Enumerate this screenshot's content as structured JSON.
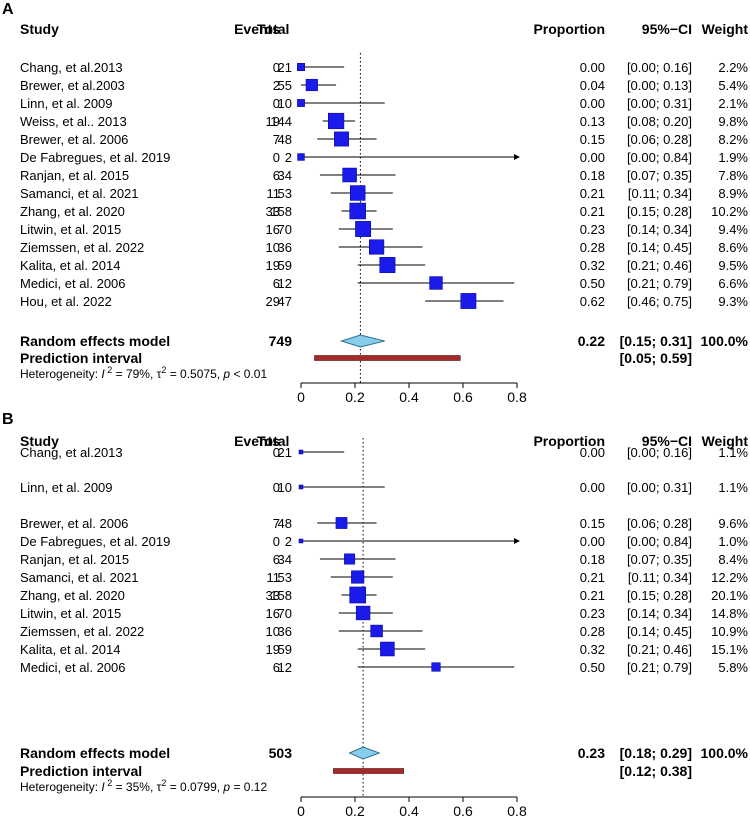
{
  "chart_data": [
    {
      "type": "forest",
      "panel_label": "A",
      "headers": {
        "study": "Study",
        "events": "Events",
        "total": "Total",
        "proportion": "Proportion",
        "ci": "95%−CI",
        "weight": "Weight"
      },
      "xlim": [
        0,
        0.8
      ],
      "ticks": [
        "0",
        "0.2",
        "0.4",
        "0.6",
        "0.8"
      ],
      "ref_line": 0.22,
      "studies": [
        {
          "name": "Chang, et al.2013",
          "events": "0",
          "total": "21",
          "prop": "0.00",
          "ci": "[0.00; 0.16]",
          "weight": "2.2%",
          "est": 0.0,
          "lo": 0.0,
          "hi": 0.16,
          "w": 2.2
        },
        {
          "name": "Brewer, et al.2003",
          "events": "2",
          "total": "55",
          "prop": "0.04",
          "ci": "[0.00; 0.13]",
          "weight": "5.4%",
          "est": 0.04,
          "lo": 0.0,
          "hi": 0.13,
          "w": 5.4
        },
        {
          "name": "Linn, et al. 2009",
          "events": "0",
          "total": "10",
          "prop": "0.00",
          "ci": "[0.00; 0.31]",
          "weight": "2.1%",
          "est": 0.0,
          "lo": 0.0,
          "hi": 0.31,
          "w": 2.1
        },
        {
          "name": "Weiss, et al.. 2013",
          "events": "19",
          "total": "144",
          "prop": "0.13",
          "ci": "[0.08; 0.20]",
          "weight": "9.8%",
          "est": 0.13,
          "lo": 0.08,
          "hi": 0.2,
          "w": 9.8
        },
        {
          "name": "Brewer, et al. 2006",
          "events": "7",
          "total": "48",
          "prop": "0.15",
          "ci": "[0.06; 0.28]",
          "weight": "8.2%",
          "est": 0.15,
          "lo": 0.06,
          "hi": 0.28,
          "w": 8.2
        },
        {
          "name": "De Fabregues, et al. 2019",
          "events": "0",
          "total": "2",
          "prop": "0.00",
          "ci": "[0.00; 0.84]",
          "weight": "1.9%",
          "est": 0.0,
          "lo": 0.0,
          "hi": 0.84,
          "w": 1.9
        },
        {
          "name": "Ranjan, et al. 2015",
          "events": "6",
          "total": "34",
          "prop": "0.18",
          "ci": "[0.07; 0.35]",
          "weight": "7.8%",
          "est": 0.18,
          "lo": 0.07,
          "hi": 0.35,
          "w": 7.8
        },
        {
          "name": "Samanci, et al. 2021",
          "events": "11",
          "total": "53",
          "prop": "0.21",
          "ci": "[0.11; 0.34]",
          "weight": "8.9%",
          "est": 0.21,
          "lo": 0.11,
          "hi": 0.34,
          "w": 8.9
        },
        {
          "name": "Zhang, et al. 2020",
          "events": "33",
          "total": "158",
          "prop": "0.21",
          "ci": "[0.15; 0.28]",
          "weight": "10.2%",
          "est": 0.21,
          "lo": 0.15,
          "hi": 0.28,
          "w": 10.2
        },
        {
          "name": "Litwin, et al. 2015",
          "events": "16",
          "total": "70",
          "prop": "0.23",
          "ci": "[0.14; 0.34]",
          "weight": "9.4%",
          "est": 0.23,
          "lo": 0.14,
          "hi": 0.34,
          "w": 9.4
        },
        {
          "name": "Ziemssen, et al. 2022",
          "events": "10",
          "total": "36",
          "prop": "0.28",
          "ci": "[0.14; 0.45]",
          "weight": "8.6%",
          "est": 0.28,
          "lo": 0.14,
          "hi": 0.45,
          "w": 8.6
        },
        {
          "name": "Kalita, et al. 2014",
          "events": "19",
          "total": "59",
          "prop": "0.32",
          "ci": "[0.21; 0.46]",
          "weight": "9.5%",
          "est": 0.32,
          "lo": 0.21,
          "hi": 0.46,
          "w": 9.5
        },
        {
          "name": "Medici, et al. 2006",
          "events": "6",
          "total": "12",
          "prop": "0.50",
          "ci": "[0.21; 0.79]",
          "weight": "6.6%",
          "est": 0.5,
          "lo": 0.21,
          "hi": 0.79,
          "w": 6.6
        },
        {
          "name": "Hou, et al. 2022",
          "events": "29",
          "total": "47",
          "prop": "0.62",
          "ci": "[0.46; 0.75]",
          "weight": "9.3%",
          "est": 0.62,
          "lo": 0.46,
          "hi": 0.75,
          "w": 9.3
        }
      ],
      "pooled": {
        "label": "Random effects model",
        "total": "749",
        "prop": "0.22",
        "ci": "[0.15; 0.31]",
        "weight": "100.0%",
        "est": 0.22,
        "lo": 0.15,
        "hi": 0.31
      },
      "prediction": {
        "label": "Prediction interval",
        "ci": "[0.05; 0.59]",
        "lo": 0.05,
        "hi": 0.59
      },
      "heterogeneity": {
        "prefix": "Heterogeneity: ",
        "I2": "79%",
        "tau2": "0.5075",
        "p": "< 0.01"
      }
    },
    {
      "type": "forest",
      "panel_label": "B",
      "headers": {
        "study": "Study",
        "events": "Events",
        "total": "Total",
        "proportion": "Proportion",
        "ci": "95%−CI",
        "weight": "Weight"
      },
      "xlim": [
        0,
        0.8
      ],
      "ticks": [
        "0",
        "0.2",
        "0.4",
        "0.6",
        "0.8"
      ],
      "ref_line": 0.23,
      "studies": [
        {
          "name": "Chang, et al.2013",
          "events": "0",
          "total": "21",
          "prop": "0.00",
          "ci": "[0.00; 0.16]",
          "weight": "1.1%",
          "est": 0.0,
          "lo": 0.0,
          "hi": 0.16,
          "w": 1.1
        },
        {
          "name": "Linn, et al. 2009",
          "events": "0",
          "total": "10",
          "prop": "0.00",
          "ci": "[0.00; 0.31]",
          "weight": "1.1%",
          "est": 0.0,
          "lo": 0.0,
          "hi": 0.31,
          "w": 1.1
        },
        {
          "name": "Brewer, et al. 2006",
          "events": "7",
          "total": "48",
          "prop": "0.15",
          "ci": "[0.06; 0.28]",
          "weight": "9.6%",
          "est": 0.15,
          "lo": 0.06,
          "hi": 0.28,
          "w": 9.6
        },
        {
          "name": "De Fabregues, et al. 2019",
          "events": "0",
          "total": "2",
          "prop": "0.00",
          "ci": "[0.00; 0.84]",
          "weight": "1.0%",
          "est": 0.0,
          "lo": 0.0,
          "hi": 0.84,
          "w": 1.0
        },
        {
          "name": "Ranjan, et al. 2015",
          "events": "6",
          "total": "34",
          "prop": "0.18",
          "ci": "[0.07; 0.35]",
          "weight": "8.4%",
          "est": 0.18,
          "lo": 0.07,
          "hi": 0.35,
          "w": 8.4
        },
        {
          "name": "Samanci, et al. 2021",
          "events": "11",
          "total": "53",
          "prop": "0.21",
          "ci": "[0.11; 0.34]",
          "weight": "12.2%",
          "est": 0.21,
          "lo": 0.11,
          "hi": 0.34,
          "w": 12.2
        },
        {
          "name": "Zhang, et al. 2020",
          "events": "33",
          "total": "158",
          "prop": "0.21",
          "ci": "[0.15; 0.28]",
          "weight": "20.1%",
          "est": 0.21,
          "lo": 0.15,
          "hi": 0.28,
          "w": 20.1
        },
        {
          "name": "Litwin, et al. 2015",
          "events": "16",
          "total": "70",
          "prop": "0.23",
          "ci": "[0.14; 0.34]",
          "weight": "14.8%",
          "est": 0.23,
          "lo": 0.14,
          "hi": 0.34,
          "w": 14.8
        },
        {
          "name": "Ziemssen, et al. 2022",
          "events": "10",
          "total": "36",
          "prop": "0.28",
          "ci": "[0.14; 0.45]",
          "weight": "10.9%",
          "est": 0.28,
          "lo": 0.14,
          "hi": 0.45,
          "w": 10.9
        },
        {
          "name": "Kalita, et al. 2014",
          "events": "19",
          "total": "59",
          "prop": "0.32",
          "ci": "[0.21; 0.46]",
          "weight": "15.1%",
          "est": 0.32,
          "lo": 0.21,
          "hi": 0.46,
          "w": 15.1
        },
        {
          "name": "Medici, et al. 2006",
          "events": "6",
          "total": "12",
          "prop": "0.50",
          "ci": "[0.21; 0.79]",
          "weight": "5.8%",
          "est": 0.5,
          "lo": 0.21,
          "hi": 0.79,
          "w": 5.8
        }
      ],
      "pooled": {
        "label": "Random effects model",
        "total": "503",
        "prop": "0.23",
        "ci": "[0.18; 0.29]",
        "weight": "100.0%",
        "est": 0.23,
        "lo": 0.18,
        "hi": 0.29
      },
      "prediction": {
        "label": "Prediction interval",
        "ci": "[0.12; 0.38]",
        "lo": 0.12,
        "hi": 0.38
      },
      "heterogeneity": {
        "prefix": "Heterogeneity: ",
        "I2": "35%",
        "tau2": "0.0799",
        "p": "= 0.12"
      }
    }
  ],
  "colors": {
    "square": "#1a1aeb",
    "diamond": "#87ceeb",
    "prediction": "#a52a2a",
    "line": "#000000"
  }
}
